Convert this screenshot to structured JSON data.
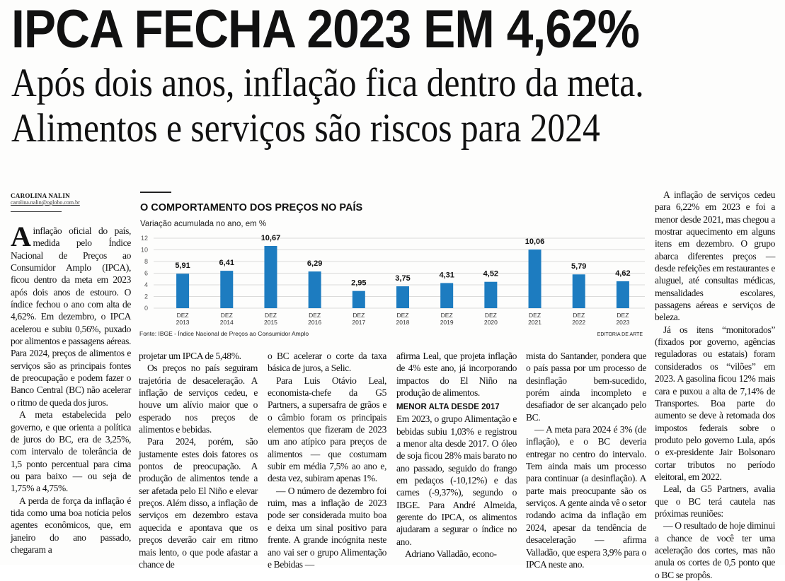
{
  "header": {
    "title": "IPCA FECHA 2023 EM 4,62%",
    "subtitle_lines": [
      "Após dois anos, inflação fica dentro da meta.",
      "Alimentos e serviços são riscos para 2024"
    ]
  },
  "byline": {
    "author": "CAROLINA NALIN",
    "email": "carolina.nalin@oglobo.com.br"
  },
  "article": {
    "subheading": "MENOR ALTA DESDE 2017",
    "columns": [
      [
        "A inflação oficial do país, medida pelo Índice Nacional de Preços ao Consumidor Amplo (IPCA), ficou dentro da meta em 2023 após dois anos de estouro. O índice fechou o ano com alta de 4,62%. Em dezembro, o IPCA acelerou e subiu 0,56%, puxado por alimentos e passagens aéreas. Para 2024, preços de alimentos e serviços são as principais fontes de preocupação e podem fazer o Banco Central (BC) não acelerar o ritmo de queda dos juros.",
        "A meta estabelecida pelo governo, e que orienta a política de juros do BC, era de 3,25%, com intervalo de tolerância de 1,5 ponto percentual para cima ou para baixo — ou seja de 1,75% a 4,75%.",
        "A perda de força da inflação é tida como uma boa notícia pelos agentes econômicos, que, em janeiro do ano passado, chegaram a"
      ],
      [
        "projetar um IPCA de 5,48%.",
        "Os preços no país seguiram trajetória de desaceleração. A inflação de serviços cedeu, e houve um alívio maior que o esperado nos preços de alimentos e bebidas.",
        "Para 2024, porém, são justamente estes dois fatores os pontos de preocupação. A produção de alimentos tende a ser afetada pelo El Niño e elevar preços. Além disso, a inflação de serviços em dezembro estava aquecida e apontava que os preços deverão cair em ritmo mais lento, o que pode afastar a chance de"
      ],
      [
        "o BC acelerar o corte da taxa básica de juros, a Selic.",
        "Para Luis Otávio Leal, economista-chefe da G5 Partners, a supersafra de grãos e o câmbio foram os principais elementos que fizeram de 2023 um ano atípico para preços de alimentos — que costumam subir em média 7,5% ao ano e, desta vez, subiram apenas 1%.",
        "— O número de dezembro foi ruim, mas a inflação de 2023 pode ser considerada muito boa e deixa um sinal positivo para frente. A grande incógnita neste ano vai ser o grupo Alimentação e Bebidas —"
      ],
      [
        "afirma Leal, que projeta inflação de 4% este ano, já incorporando impactos do El Niño na produção de alimentos.",
        "Em 2023, o grupo Alimentação e bebidas subiu 1,03% e registrou a menor alta desde 2017. O óleo de soja ficou 28% mais barato no ano passado, seguido do frango em pedaços (-10,12%) e das carnes (-9,37%), segundo o IBGE. Para André Almeida, gerente do IPCA, os alimentos ajudaram a segurar o índice no ano.",
        "Adriano Valladão, econo-"
      ],
      [
        "mista do Santander, pondera que o país passa por um processo de desinflação bem-sucedido, porém ainda incompleto e desafiador de ser alcançado pelo BC.",
        "— A meta para 2024 é 3% (de inflação), e o BC deveria entregar no centro do intervalo. Tem ainda mais um processo para continuar (a desinflação). A parte mais preocupante são os serviços. A gente ainda vê o setor rodando acima da inflação em 2024, apesar da tendência de desaceleração — afirma Valladão, que espera 3,9% para o IPCA neste ano."
      ],
      [
        "A inflação de serviços cedeu para 6,22% em 2023 e foi a menor desde 2021, mas chegou a mostrar aquecimento em alguns itens em dezembro. O grupo abarca diferentes preços — desde refeições em restaurantes e aluguel, até consultas médicas, mensalidades escolares, passagens aéreas e serviços de beleza.",
        "Já os itens “monitorados” (fixados por governo, agências reguladoras ou estatais) foram considerados os “vilões” em 2023. A gasolina ficou 12% mais cara e puxou a alta de 7,14% de Transportes. Boa parte do aumento se deve à retomada dos impostos federais sobre o produto pelo governo Lula, após o ex-presidente Jair Bolsonaro cortar tributos no período eleitoral, em 2022.",
        "Leal, da G5 Partners, avalia que o BC terá cautela nas próximas reuniões:",
        "— O resultado de hoje diminui a chance de você ter uma aceleração dos cortes, mas não anula os cortes de 0,5 ponto que o BC se propôs."
      ]
    ]
  },
  "chart_data": {
    "type": "bar",
    "title": "O COMPORTAMENTO DOS PREÇOS NO PAÍS",
    "subtitle": "Variação acumulada no ano, em %",
    "source": "Fonte: IBGE - Índice Nacional de Preços ao Consumidor Amplo",
    "credit": "EDITORIA DE ARTE",
    "categories": [
      "DEZ 2013",
      "DEZ 2014",
      "DEZ 2015",
      "DEZ 2016",
      "DEZ 2017",
      "DEZ 2018",
      "DEZ 2019",
      "DEZ 2020",
      "DEZ 2021",
      "DEZ 2022",
      "DEZ 2023"
    ],
    "values": [
      5.91,
      6.41,
      10.67,
      6.29,
      2.95,
      3.75,
      4.31,
      4.52,
      10.06,
      5.79,
      4.62
    ],
    "value_labels": [
      "5,91",
      "6,41",
      "10,67",
      "6,29",
      "2,95",
      "3,75",
      "4,31",
      "4,52",
      "10,06",
      "5,79",
      "4,62"
    ],
    "color": "#1d7cc0",
    "ylim": [
      0,
      12
    ],
    "yticks": [
      0,
      2,
      4,
      6,
      8,
      10,
      12
    ],
    "grid": true
  }
}
